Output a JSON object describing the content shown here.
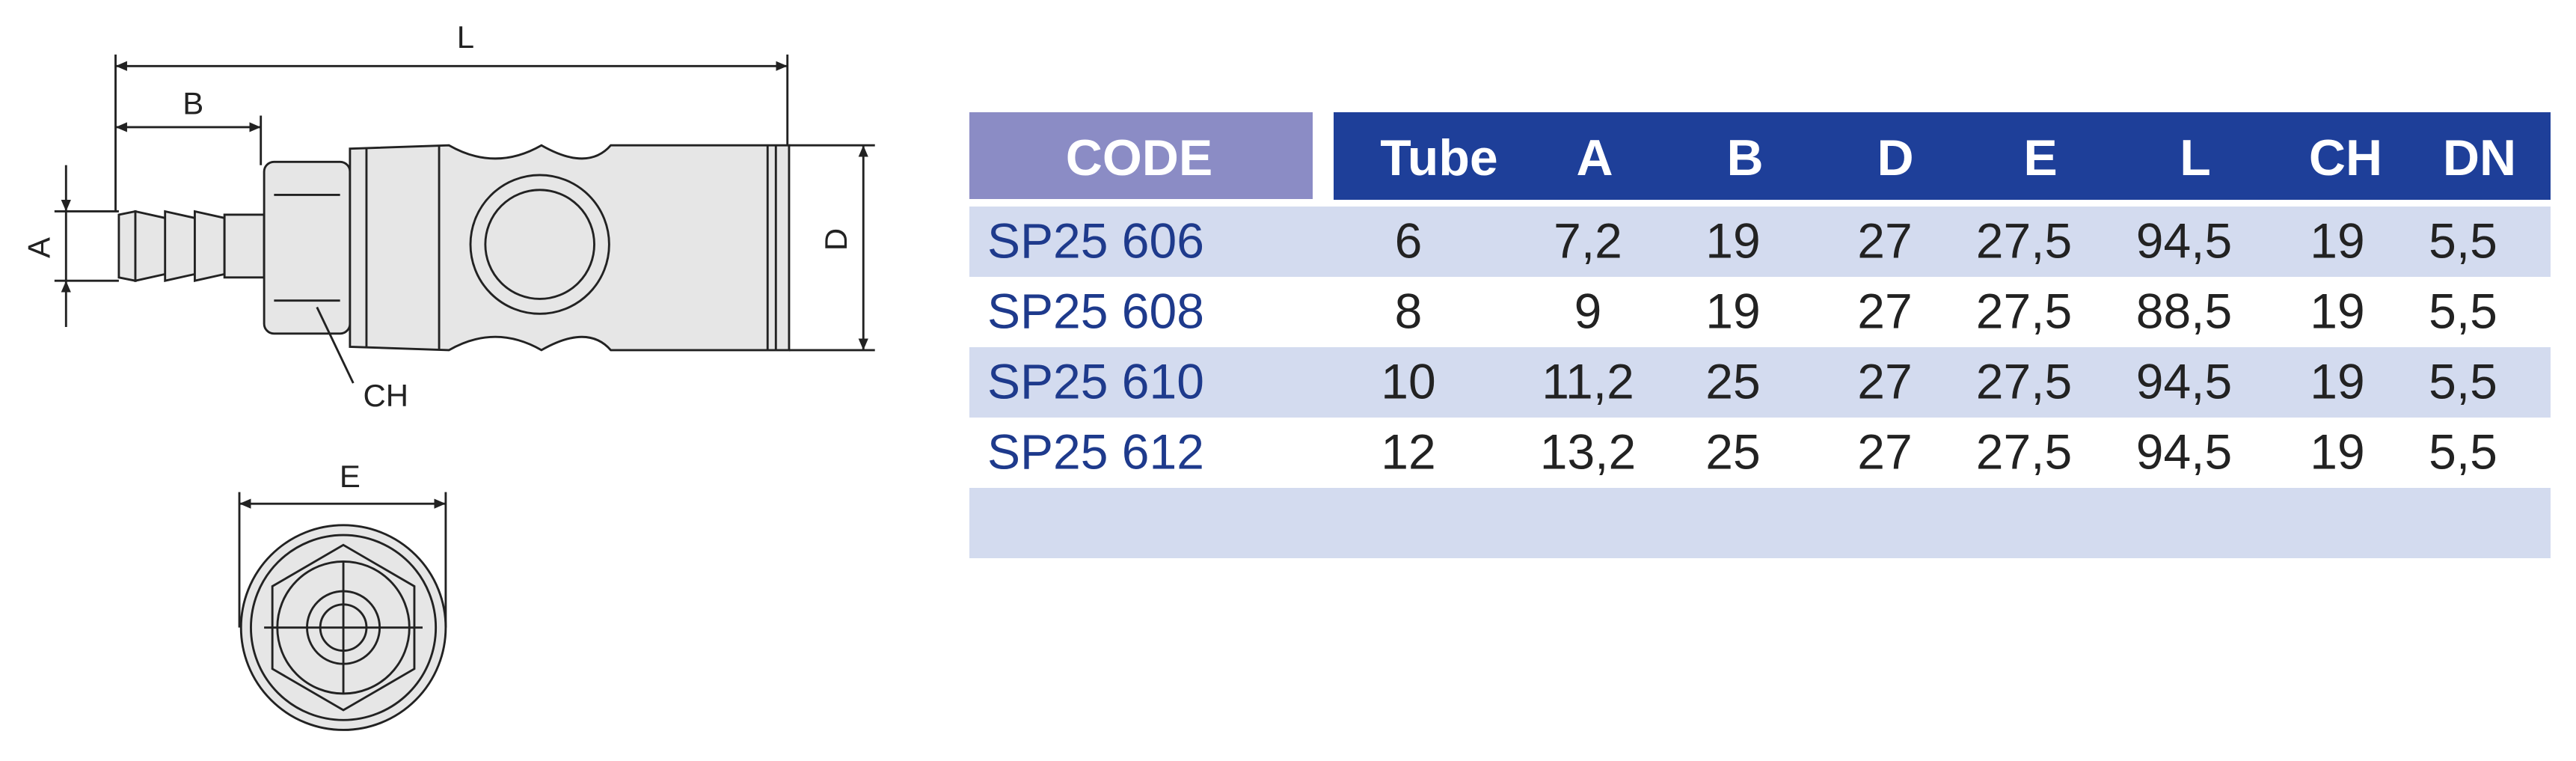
{
  "drawing": {
    "labels": {
      "L": "L",
      "B": "B",
      "A": "A",
      "D": "D",
      "CH": "CH",
      "E": "E"
    }
  },
  "table": {
    "header": [
      "CODE",
      "Tube",
      "A",
      "B",
      "D",
      "E",
      "L",
      "CH",
      "DN"
    ],
    "rows": [
      [
        "SP25 606",
        "6",
        "7,2",
        "19",
        "27",
        "27,5",
        "94,5",
        "19",
        "5,5"
      ],
      [
        "SP25 608",
        "8",
        "9",
        "19",
        "27",
        "27,5",
        "88,5",
        "19",
        "5,5"
      ],
      [
        "SP25 610",
        "10",
        "11,2",
        "25",
        "27",
        "27,5",
        "94,5",
        "19",
        "5,5"
      ],
      [
        "SP25 612",
        "12",
        "13,2",
        "25",
        "27",
        "27,5",
        "94,5",
        "19",
        "5,5"
      ]
    ]
  }
}
